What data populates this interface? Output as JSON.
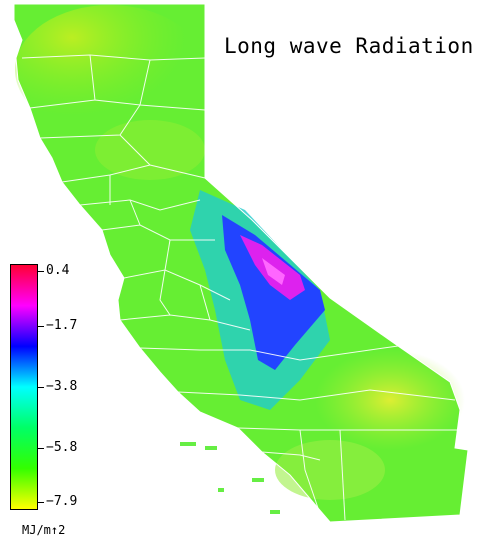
{
  "title": "Long wave Radiation",
  "legend": {
    "unit": "MJ/m↑2",
    "ticks": [
      "0.4",
      "−1.7",
      "−3.8",
      "−5.8",
      "−7.9"
    ],
    "gradient": [
      "#ff0033",
      "#ff00ff",
      "#0000ff",
      "#00ffff",
      "#00ff66",
      "#33ff00",
      "#ffff00"
    ]
  },
  "colors": {
    "state_fill": "#66ee33",
    "coast_fill": "#55dd44",
    "north_fill": "#aaee22",
    "desert_fill": "#ccee33",
    "sierra_cyan": "#22cccc",
    "sierra_blue": "#2244ff",
    "sierra_magenta": "#dd22ee",
    "county_lines": "#ffffff"
  }
}
